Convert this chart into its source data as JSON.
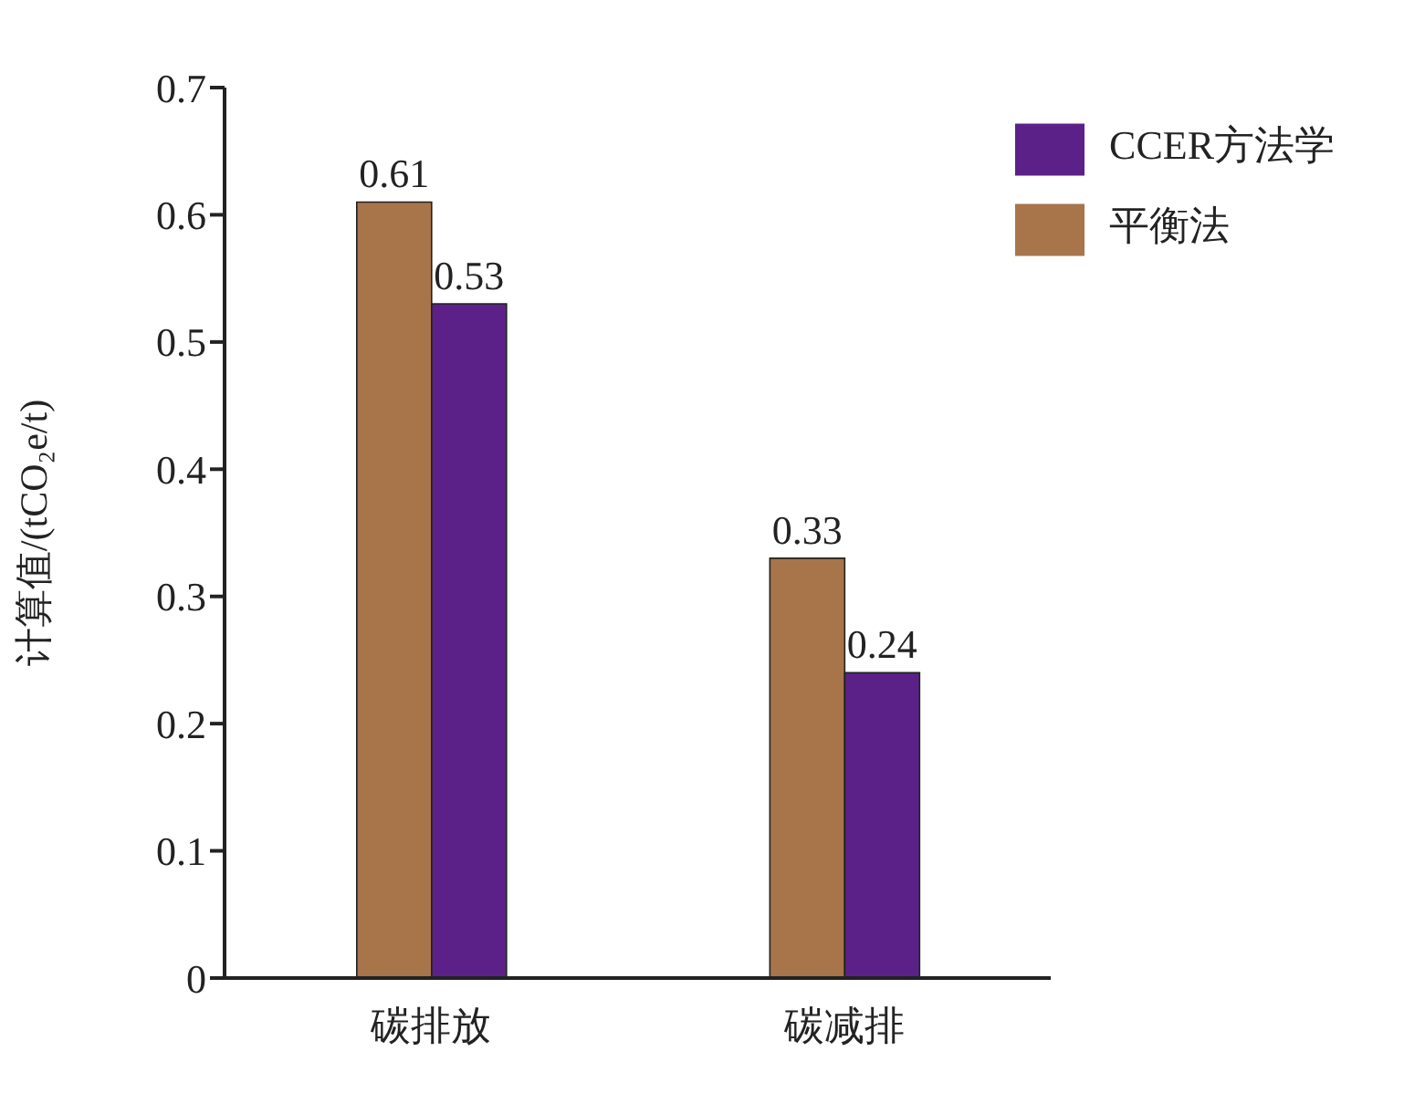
{
  "chart_data": {
    "type": "bar",
    "ylabel": "计算值/(tCO₂e/t)",
    "categories": [
      "碳排放",
      "碳减排"
    ],
    "series": [
      {
        "name": "平衡法",
        "color": "#a8744a",
        "values": [
          0.61,
          0.33
        ]
      },
      {
        "name": "CCER方法学",
        "color": "#5b2189",
        "values": [
          0.53,
          0.24
        ]
      }
    ],
    "ylim": [
      0,
      0.7
    ],
    "yticks": [
      0,
      0.1,
      0.2,
      0.3,
      0.4,
      0.5,
      0.6,
      0.7
    ],
    "grid": false,
    "legend": "top right",
    "data_labels": true
  }
}
